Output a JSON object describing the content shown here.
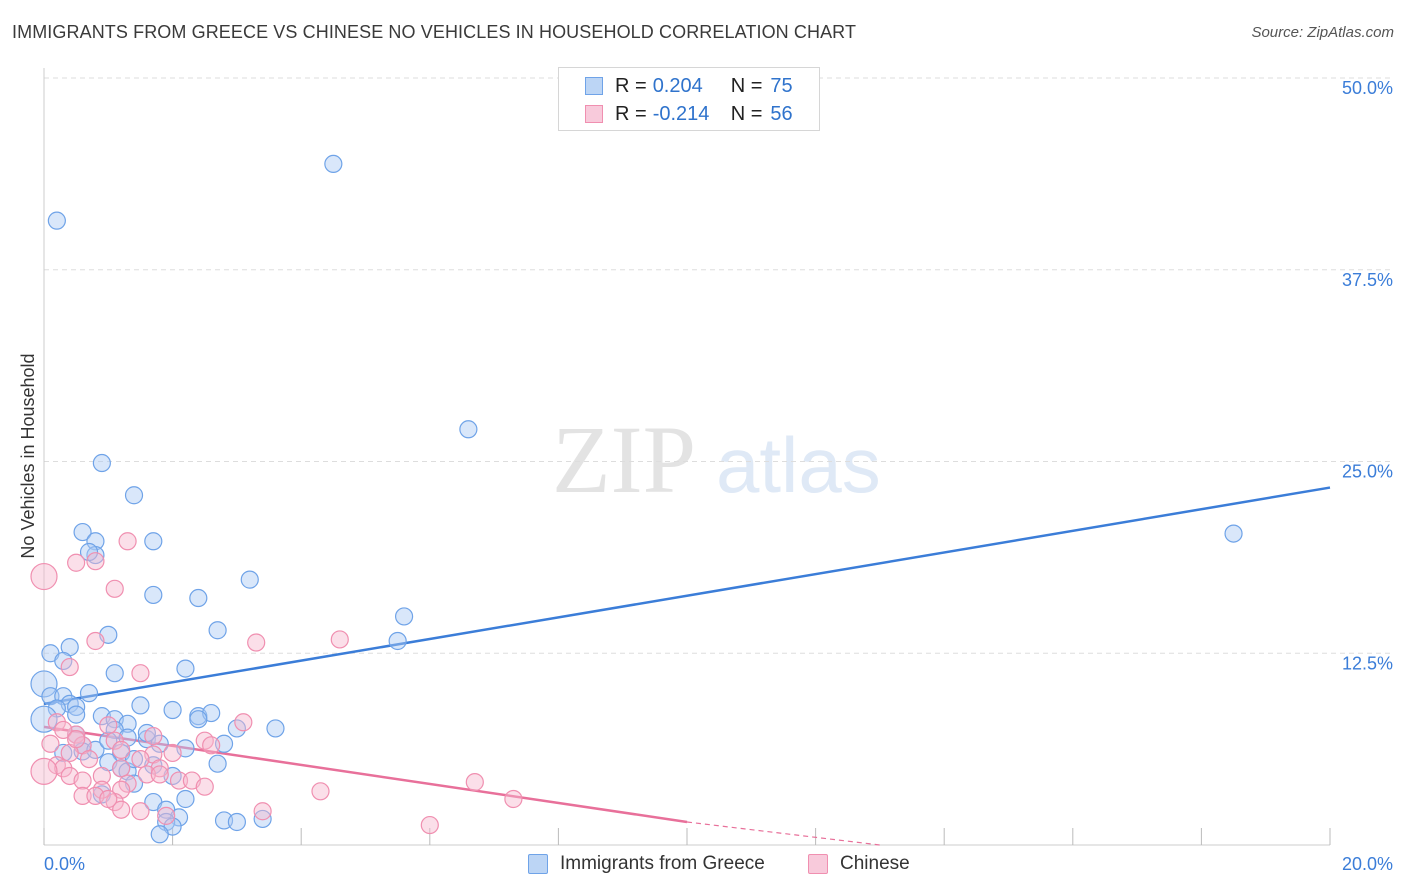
{
  "header": {
    "title": "IMMIGRANTS FROM GREECE VS CHINESE NO VEHICLES IN HOUSEHOLD CORRELATION CHART",
    "source": "Source: ZipAtlas.com"
  },
  "watermark": {
    "zip": "ZIP",
    "atlas": "atlas"
  },
  "stats_legend": [
    {
      "r_label": "R =",
      "r_value": "0.204",
      "n_label": "N =",
      "n_value": "75",
      "color": "#6fa3e8",
      "fill": "#bcd5f5"
    },
    {
      "r_label": "R =",
      "r_value": "-0.214",
      "n_label": "N =",
      "n_value": "56",
      "color": "#f08fb0",
      "fill": "#f8cadb"
    }
  ],
  "bottom_legend": [
    {
      "label": "Immigrants from Greece",
      "color": "#6fa3e8",
      "fill": "#bcd5f5"
    },
    {
      "label": "Chinese",
      "color": "#f08fb0",
      "fill": "#f8cadb"
    }
  ],
  "colors": {
    "blue": "#3b7dd8",
    "pink": "#e8709a",
    "tick": "#3b7dd8",
    "grid": "#dddddd"
  },
  "chart_data": {
    "type": "scatter",
    "title": "IMMIGRANTS FROM GREECE VS CHINESE NO VEHICLES IN HOUSEHOLD CORRELATION CHART",
    "xlabel": "",
    "ylabel": "No Vehicles in Household",
    "xlim": [
      0,
      20
    ],
    "ylim": [
      0,
      50
    ],
    "x_tick_labels": [
      "0.0%",
      "20.0%"
    ],
    "y_ticks": [
      12.5,
      25.0,
      37.5,
      50.0
    ],
    "y_tick_labels": [
      "12.5%",
      "25.0%",
      "37.5%",
      "50.0%"
    ],
    "grid": true,
    "legend_position": "top-center",
    "series": [
      {
        "name": "Immigrants from Greece",
        "color": "#3b7dd8",
        "trend": {
          "x": [
            0,
            20
          ],
          "y": [
            9.2,
            23.3
          ]
        },
        "points": [
          [
            0.2,
            40.7
          ],
          [
            4.5,
            44.4
          ],
          [
            6.6,
            27.1
          ],
          [
            0.9,
            24.9
          ],
          [
            1.4,
            22.8
          ],
          [
            0.6,
            20.4
          ],
          [
            0.8,
            19.8
          ],
          [
            1.7,
            19.8
          ],
          [
            0.8,
            18.9
          ],
          [
            0.7,
            19.1
          ],
          [
            3.2,
            17.3
          ],
          [
            1.7,
            16.3
          ],
          [
            2.4,
            16.1
          ],
          [
            5.6,
            14.9
          ],
          [
            2.7,
            14.0
          ],
          [
            1.0,
            13.7
          ],
          [
            5.5,
            13.3
          ],
          [
            0.4,
            12.9
          ],
          [
            0.1,
            12.5
          ],
          [
            0.3,
            12.0
          ],
          [
            2.2,
            11.5
          ],
          [
            1.1,
            11.2
          ],
          [
            0.0,
            10.5
          ],
          [
            0.1,
            9.7
          ],
          [
            0.3,
            9.7
          ],
          [
            0.7,
            9.9
          ],
          [
            0.4,
            9.2
          ],
          [
            0.2,
            8.9
          ],
          [
            0.5,
            9.0
          ],
          [
            1.5,
            9.1
          ],
          [
            2.0,
            8.8
          ],
          [
            0.5,
            8.5
          ],
          [
            0.0,
            8.2
          ],
          [
            0.9,
            8.4
          ],
          [
            2.4,
            8.4
          ],
          [
            2.6,
            8.6
          ],
          [
            2.4,
            8.2
          ],
          [
            1.1,
            8.2
          ],
          [
            1.3,
            7.9
          ],
          [
            1.1,
            7.5
          ],
          [
            3.6,
            7.6
          ],
          [
            3.0,
            7.6
          ],
          [
            0.5,
            7.2
          ],
          [
            1.3,
            7.0
          ],
          [
            1.6,
            6.9
          ],
          [
            0.6,
            6.5
          ],
          [
            0.6,
            6.1
          ],
          [
            0.8,
            6.2
          ],
          [
            1.2,
            6.0
          ],
          [
            1.8,
            6.6
          ],
          [
            2.8,
            6.6
          ],
          [
            1.7,
            5.2
          ],
          [
            2.7,
            5.3
          ],
          [
            1.0,
            5.4
          ],
          [
            1.2,
            5.0
          ],
          [
            1.3,
            4.8
          ],
          [
            2.0,
            4.5
          ],
          [
            1.4,
            4.0
          ],
          [
            2.2,
            3.0
          ],
          [
            1.7,
            2.8
          ],
          [
            1.9,
            2.3
          ],
          [
            2.1,
            1.8
          ],
          [
            2.8,
            1.6
          ],
          [
            3.0,
            1.5
          ],
          [
            1.9,
            1.5
          ],
          [
            2.0,
            1.2
          ],
          [
            1.8,
            0.7
          ],
          [
            3.4,
            1.7
          ],
          [
            18.5,
            20.3
          ],
          [
            1.6,
            7.3
          ],
          [
            1.0,
            6.8
          ],
          [
            0.3,
            6.0
          ],
          [
            2.2,
            6.3
          ],
          [
            1.4,
            5.6
          ],
          [
            0.9,
            3.3
          ]
        ]
      },
      {
        "name": "Chinese",
        "color": "#e8709a",
        "trend": {
          "x": [
            0,
            10
          ],
          "y": [
            7.7,
            1.5
          ]
        },
        "trend_dashed": {
          "x": [
            10,
            13
          ],
          "y": [
            1.5,
            0.0
          ]
        },
        "points": [
          [
            0.0,
            17.5
          ],
          [
            1.3,
            19.8
          ],
          [
            0.5,
            18.4
          ],
          [
            0.8,
            18.5
          ],
          [
            1.1,
            16.7
          ],
          [
            4.6,
            13.4
          ],
          [
            3.3,
            13.2
          ],
          [
            0.8,
            13.3
          ],
          [
            0.4,
            11.6
          ],
          [
            1.5,
            11.2
          ],
          [
            0.2,
            8.0
          ],
          [
            0.5,
            7.2
          ],
          [
            0.3,
            7.5
          ],
          [
            1.0,
            7.8
          ],
          [
            3.1,
            8.0
          ],
          [
            1.1,
            6.8
          ],
          [
            0.1,
            6.6
          ],
          [
            0.6,
            6.5
          ],
          [
            2.5,
            6.8
          ],
          [
            2.6,
            6.5
          ],
          [
            1.7,
            5.9
          ],
          [
            2.0,
            6.0
          ],
          [
            0.4,
            6.0
          ],
          [
            0.7,
            5.6
          ],
          [
            1.5,
            5.6
          ],
          [
            0.2,
            5.2
          ],
          [
            0.3,
            5.0
          ],
          [
            1.2,
            5.0
          ],
          [
            1.8,
            5.0
          ],
          [
            0.0,
            4.8
          ],
          [
            0.4,
            4.5
          ],
          [
            0.6,
            4.2
          ],
          [
            0.9,
            4.5
          ],
          [
            1.3,
            4.0
          ],
          [
            2.1,
            4.2
          ],
          [
            2.3,
            4.2
          ],
          [
            1.6,
            4.6
          ],
          [
            0.6,
            3.2
          ],
          [
            0.9,
            3.6
          ],
          [
            1.2,
            3.6
          ],
          [
            2.5,
            3.8
          ],
          [
            6.7,
            4.1
          ],
          [
            4.3,
            3.5
          ],
          [
            1.1,
            2.8
          ],
          [
            1.2,
            2.3
          ],
          [
            1.5,
            2.2
          ],
          [
            1.9,
            1.9
          ],
          [
            3.4,
            2.2
          ],
          [
            7.3,
            3.0
          ],
          [
            6.0,
            1.3
          ],
          [
            0.8,
            3.2
          ],
          [
            1.8,
            4.6
          ],
          [
            1.0,
            3.0
          ],
          [
            0.5,
            6.9
          ],
          [
            1.7,
            7.1
          ],
          [
            1.2,
            6.2
          ]
        ]
      }
    ]
  }
}
